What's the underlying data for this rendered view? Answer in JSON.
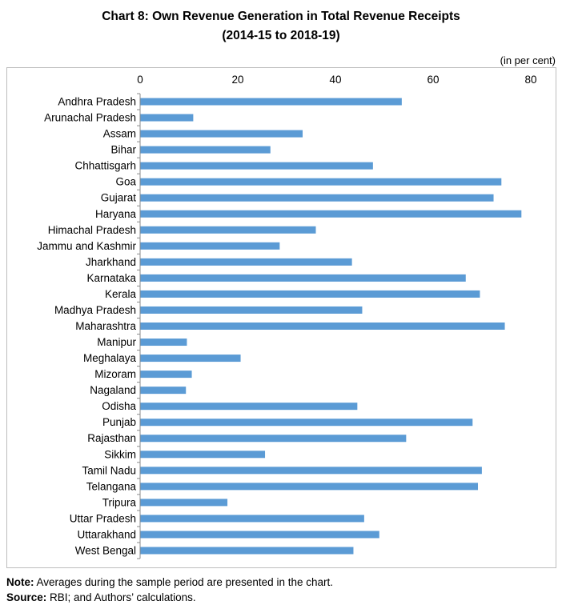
{
  "chart_data": {
    "type": "bar",
    "orientation": "horizontal",
    "title": "Chart 8: Own Revenue Generation in Total Revenue Receipts",
    "subtitle": "(2014-15 to 2018-19)",
    "unit_label": "(in per cent)",
    "xlim": [
      0,
      80
    ],
    "xticks": [
      "0",
      "20",
      "40",
      "60",
      "80"
    ],
    "xtick_values": [
      0,
      20,
      40,
      60,
      80
    ],
    "bar_color": "#5b9bd5",
    "categories": [
      "Andhra Pradesh",
      "Arunachal Pradesh",
      "Assam",
      "Bihar",
      "Chhattisgarh",
      "Goa",
      "Gujarat",
      "Haryana",
      "Himachal Pradesh",
      "Jammu and Kashmir",
      "Jharkhand",
      "Karnataka",
      "Kerala",
      "Madhya Pradesh",
      "Maharashtra",
      "Manipur",
      "Meghalaya",
      "Mizoram",
      "Nagaland",
      "Odisha",
      "Punjab",
      "Rajasthan",
      "Sikkim",
      "Tamil Nadu",
      "Telangana",
      "Tripura",
      "Uttar Pradesh",
      "Uttarakhand",
      "West Bengal"
    ],
    "values": [
      53.5,
      10.8,
      33.2,
      26.6,
      47.6,
      73.9,
      72.3,
      78.0,
      35.9,
      28.5,
      43.3,
      66.6,
      69.5,
      45.4,
      74.6,
      9.5,
      20.5,
      10.5,
      9.3,
      44.4,
      68.0,
      54.4,
      25.5,
      69.9,
      69.1,
      17.8,
      45.8,
      48.9,
      43.6
    ]
  },
  "notes": {
    "note_label": "Note:",
    "note_text": " Averages during the sample period are presented in the chart.",
    "source_label": "Source:",
    "source_text": " RBI; and Authors’ calculations."
  }
}
